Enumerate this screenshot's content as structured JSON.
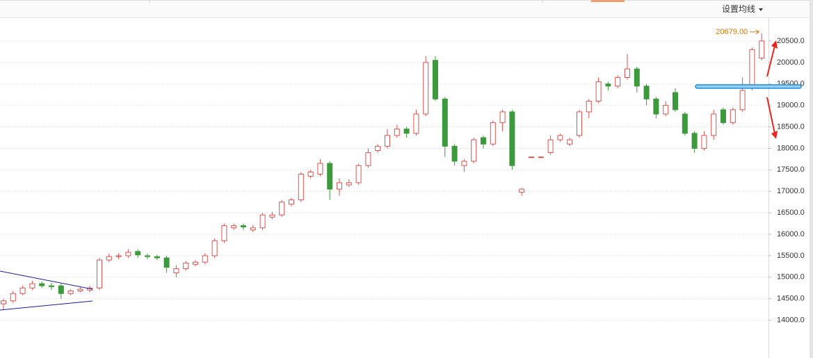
{
  "toolbar": {
    "button": "设置均线"
  },
  "chart_data": {
    "type": "candlestick",
    "ylim": [
      13200,
      21050
    ],
    "yticks": [
      {
        "value": 14000,
        "label": "14000.0"
      },
      {
        "value": 14500,
        "label": "14500.0"
      },
      {
        "value": 15000,
        "label": "15000.0"
      },
      {
        "value": 15500,
        "label": "15500.0"
      },
      {
        "value": 16000,
        "label": "16000.0"
      },
      {
        "value": 16500,
        "label": "16500.0"
      },
      {
        "value": 17000,
        "label": "17000.0"
      },
      {
        "value": 17500,
        "label": "17500.0"
      },
      {
        "value": 18000,
        "label": "18000.0"
      },
      {
        "value": 18500,
        "label": "18500.0"
      },
      {
        "value": 19000,
        "label": "19000.0"
      },
      {
        "value": 19500,
        "label": "19500.0"
      },
      {
        "value": 20000,
        "label": "20000.0"
      },
      {
        "value": 20500,
        "label": "20500.0"
      }
    ],
    "grid": true,
    "up_color": "#d9534f",
    "down_color": "#3c9a3c",
    "open": [
      14380,
      14450,
      14620,
      14750,
      14850,
      14800,
      14800,
      14620,
      14680,
      14700,
      14750,
      15400,
      15480,
      15500,
      15600,
      15500,
      15480,
      15450,
      15100,
      15200,
      15300,
      15350,
      15500,
      15850,
      16150,
      16200,
      16100,
      16150,
      16400,
      16450,
      16700,
      16800,
      17350,
      17400,
      17650,
      17050,
      17150,
      17200,
      17600,
      17950,
      18050,
      18300,
      18450,
      18350,
      18800,
      20050,
      19150,
      18050,
      17600,
      17700,
      18250,
      18100,
      18600,
      18850,
      16980,
      17800,
      17800,
      17900,
      18200,
      18100,
      18300,
      18850,
      19100,
      19500,
      19450,
      19650,
      19850,
      19450,
      19150,
      18800,
      19300,
      18800,
      18350,
      18000,
      18300,
      18900,
      18600,
      18900,
      19400,
      20100
    ],
    "high": [
      14500,
      14680,
      14800,
      14920,
      14900,
      14880,
      14850,
      14720,
      14780,
      14800,
      15450,
      15550,
      15560,
      15650,
      15650,
      15550,
      15520,
      15500,
      15280,
      15380,
      15400,
      15560,
      15900,
      16250,
      16250,
      16250,
      16220,
      16500,
      16520,
      16800,
      16850,
      17450,
      17500,
      17750,
      17700,
      17300,
      17280,
      17650,
      18000,
      18100,
      18450,
      18550,
      18500,
      18900,
      20150,
      20150,
      19200,
      18100,
      17750,
      18250,
      18300,
      18650,
      18900,
      18900,
      17080,
      17800,
      17800,
      18300,
      18350,
      18250,
      18900,
      19150,
      19650,
      19550,
      19700,
      20200,
      19900,
      19500,
      19200,
      19100,
      19400,
      18850,
      18400,
      18400,
      18900,
      18950,
      18950,
      19650,
      20350,
      20679
    ],
    "low": [
      14250,
      14400,
      14580,
      14700,
      14750,
      14700,
      14500,
      14580,
      14650,
      14650,
      14700,
      15350,
      15420,
      15450,
      15450,
      15420,
      15400,
      15100,
      15000,
      15150,
      15250,
      15300,
      15450,
      15800,
      16100,
      16100,
      16050,
      16100,
      16350,
      16400,
      16650,
      16750,
      17300,
      17350,
      16800,
      16900,
      17100,
      17150,
      17550,
      17900,
      18000,
      18250,
      18250,
      18300,
      18750,
      19100,
      17800,
      17600,
      17450,
      17650,
      18000,
      18050,
      18400,
      17500,
      16900,
      17800,
      17800,
      17850,
      18150,
      18050,
      18250,
      18700,
      19050,
      19350,
      19400,
      19600,
      19300,
      19000,
      18700,
      18750,
      18850,
      18300,
      17900,
      17950,
      18200,
      18550,
      18550,
      18850,
      19350,
      20050
    ],
    "close": [
      14450,
      14620,
      14750,
      14850,
      14800,
      14780,
      14620,
      14680,
      14720,
      14750,
      15400,
      15480,
      15500,
      15580,
      15520,
      15480,
      15450,
      15230,
      15200,
      15330,
      15350,
      15500,
      15850,
      16200,
      16200,
      16170,
      16150,
      16450,
      16450,
      16750,
      16800,
      17400,
      17450,
      17650,
      17050,
      17200,
      17200,
      17600,
      17900,
      18050,
      18300,
      18450,
      18350,
      18800,
      20000,
      19150,
      18050,
      17700,
      17700,
      18200,
      18100,
      18600,
      18850,
      17600,
      17050,
      17800,
      17800,
      18200,
      18300,
      18200,
      18850,
      19100,
      19550,
      19450,
      19650,
      19850,
      19450,
      19150,
      18800,
      19000,
      18900,
      18350,
      18000,
      18300,
      18800,
      18600,
      18900,
      19350,
      20300,
      20500
    ],
    "high_label": {
      "value": 20679,
      "label": "20679.00"
    }
  }
}
